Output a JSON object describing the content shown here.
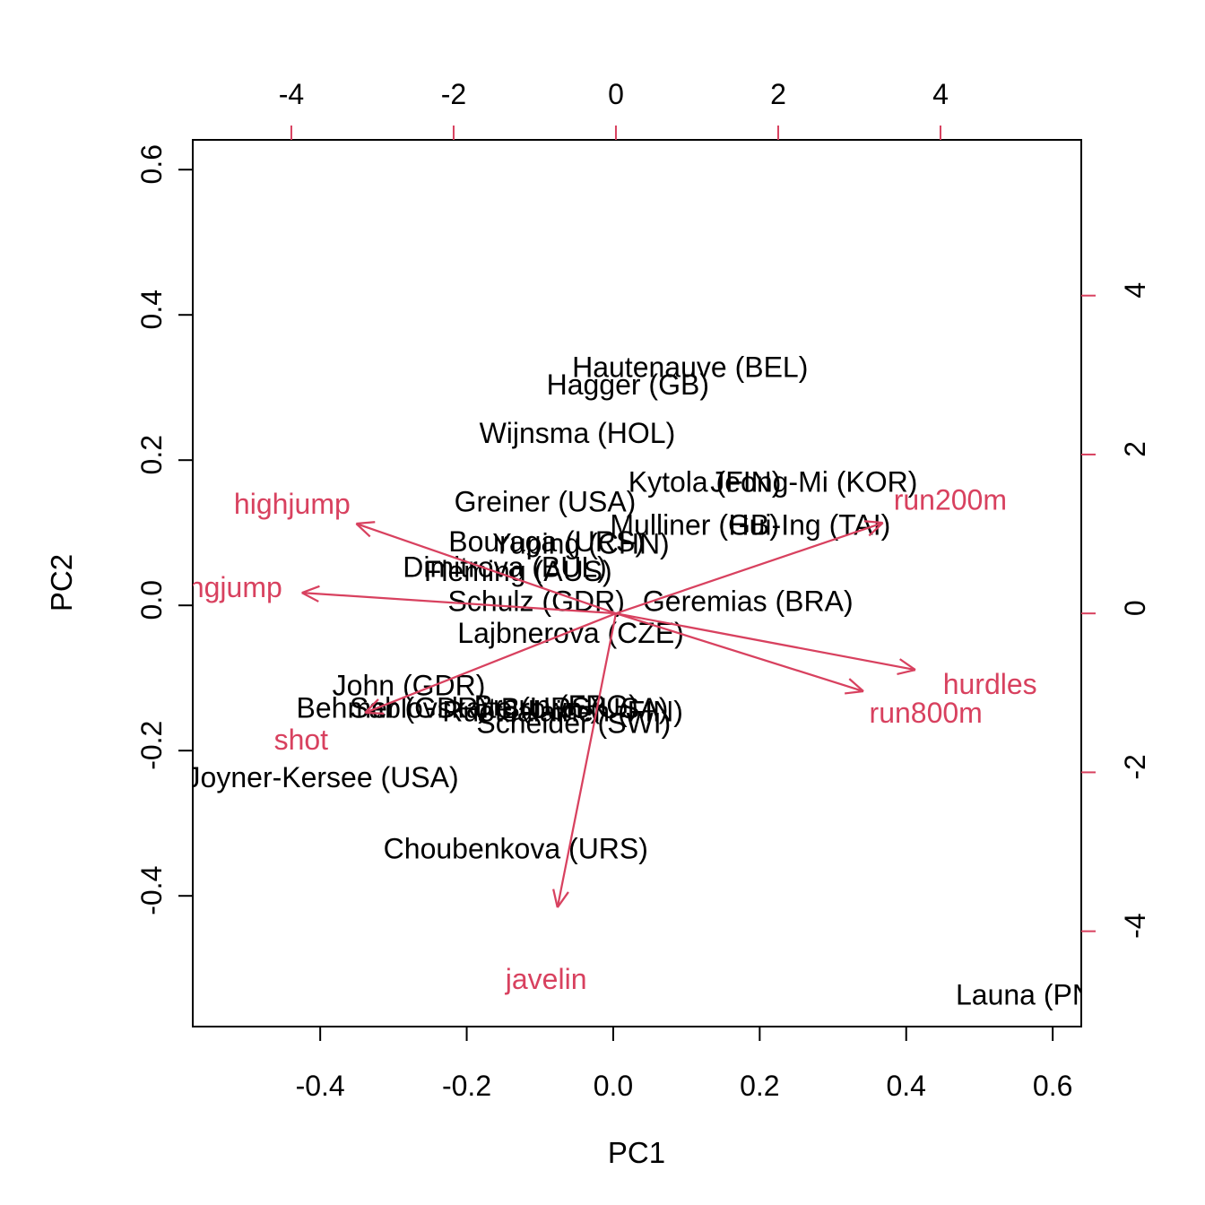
{
  "figure": {
    "kind": "R base-graphics PCA biplot",
    "background": "#ffffff"
  },
  "colors": {
    "scores_text": "#000000",
    "loadings": "#d8415f",
    "axis_line": "#000000",
    "tick_label": "#000000"
  },
  "axes": {
    "bottom": {
      "title": "PC1",
      "tick_labels": [
        "-0.4",
        "-0.2",
        "0.0",
        "0.2",
        "0.4",
        "0.6"
      ],
      "tick_values": [
        -0.4,
        -0.2,
        0.0,
        0.2,
        0.4,
        0.6
      ],
      "lim": [
        -0.574,
        0.639
      ],
      "tick_color": "#000000"
    },
    "left": {
      "title": "PC2",
      "tick_labels": [
        "-0.4",
        "-0.2",
        "0.0",
        "0.2",
        "0.4",
        "0.6"
      ],
      "tick_values": [
        -0.4,
        -0.2,
        0.0,
        0.2,
        0.4,
        0.6
      ],
      "lim": [
        -0.58,
        0.641
      ],
      "tick_color": "#000000"
    },
    "top": {
      "title": "",
      "tick_labels": [
        "-4",
        "-2",
        "0",
        "2",
        "4"
      ],
      "tick_values": [
        -4,
        -2,
        0,
        2,
        4
      ],
      "lim": [
        -5.215,
        5.735
      ],
      "tick_color": "#d8415f"
    },
    "right": {
      "title": "",
      "tick_labels": [
        "4",
        "2",
        "0",
        "-2",
        "-4"
      ],
      "tick_values": [
        4,
        2,
        0,
        -2,
        -4
      ],
      "lim": [
        -5.2,
        5.96
      ],
      "tick_color": "#d8415f"
    }
  },
  "chart_data": {
    "type": "scatter",
    "subtype": "pca-biplot",
    "grid": false,
    "legend": false,
    "scores_axes": {
      "x": "bottom",
      "y": "left"
    },
    "scores": [
      {
        "label": "Hautenauve (BEL)",
        "x": 0.105,
        "y": 0.328
      },
      {
        "label": "Hagger (GB)",
        "x": 0.02,
        "y": 0.304
      },
      {
        "label": "Wijnsma (HOL)",
        "x": -0.049,
        "y": 0.237
      },
      {
        "label": "Kytola (FIN)",
        "x": 0.125,
        "y": 0.17
      },
      {
        "label": "Jeong-Mi (KOR)",
        "x": 0.274,
        "y": 0.17
      },
      {
        "label": "Greiner (USA)",
        "x": -0.093,
        "y": 0.143
      },
      {
        "label": "Mulliner (GB)",
        "x": 0.111,
        "y": 0.111
      },
      {
        "label": "Hui-Ing (TAI)",
        "x": 0.268,
        "y": 0.111
      },
      {
        "label": "Bouraga (URS)",
        "x": -0.091,
        "y": 0.088
      },
      {
        "label": "Yuping (CHN)",
        "x": -0.044,
        "y": 0.085
      },
      {
        "label": "Dimitrova (BUL)",
        "x": -0.148,
        "y": 0.053
      },
      {
        "label": "Fleming (AUS)",
        "x": -0.13,
        "y": 0.047
      },
      {
        "label": "Schulz (GDR)",
        "x": -0.105,
        "y": 0.006
      },
      {
        "label": "Geremias (BRA)",
        "x": 0.184,
        "y": 0.006
      },
      {
        "label": "Lajbnerova (CZE)",
        "x": -0.058,
        "y": -0.038
      },
      {
        "label": "John (GDR)",
        "x": -0.279,
        "y": -0.11
      },
      {
        "label": "Behmer (GDR)",
        "x": -0.302,
        "y": -0.141
      },
      {
        "label": "Sablovskaite (URS)",
        "x": -0.189,
        "y": -0.141
      },
      {
        "label": "Braun (FRG)",
        "x": -0.078,
        "y": -0.138
      },
      {
        "label": "Ruotsalainen (FIN)",
        "x": -0.069,
        "y": -0.146
      },
      {
        "label": "Brown (USA)",
        "x": -0.039,
        "y": -0.142
      },
      {
        "label": "Scheider (SWI)",
        "x": -0.054,
        "y": -0.162
      },
      {
        "label": "Joyner-Kersee (USA)",
        "x": -0.397,
        "y": -0.237
      },
      {
        "label": "Choubenkova (URS)",
        "x": -0.133,
        "y": -0.335
      },
      {
        "label": "Launa (PNG)",
        "x": 0.583,
        "y": -0.536,
        "visible_text": "Launa (P"
      }
    ],
    "loadings_axes": {
      "x": "top",
      "y": "right"
    },
    "origin": {
      "x": 0,
      "y": 0
    },
    "loadings": [
      {
        "label": "highjump",
        "tip_x": -3.2,
        "tip_y": 1.13,
        "label_x": -3.99,
        "label_y": 1.38
      },
      {
        "label": "longjump",
        "tip_x": -3.87,
        "tip_y": 0.26,
        "label_x": -4.83,
        "label_y": 0.33,
        "visible_text": "ngjump"
      },
      {
        "label": "run200m",
        "tip_x": 3.29,
        "tip_y": 1.14,
        "label_x": 4.12,
        "label_y": 1.43
      },
      {
        "label": "hurdles",
        "tip_x": 3.69,
        "tip_y": -0.71,
        "label_x": 4.61,
        "label_y": -0.89
      },
      {
        "label": "run800m",
        "tip_x": 3.05,
        "tip_y": -0.98,
        "label_x": 3.82,
        "label_y": -1.25
      },
      {
        "label": "shot",
        "tip_x": -3.09,
        "tip_y": -1.25,
        "label_x": -3.88,
        "label_y": -1.59
      },
      {
        "label": "javelin",
        "tip_x": -0.72,
        "tip_y": -3.7,
        "label_x": -0.86,
        "label_y": -4.6
      }
    ]
  }
}
